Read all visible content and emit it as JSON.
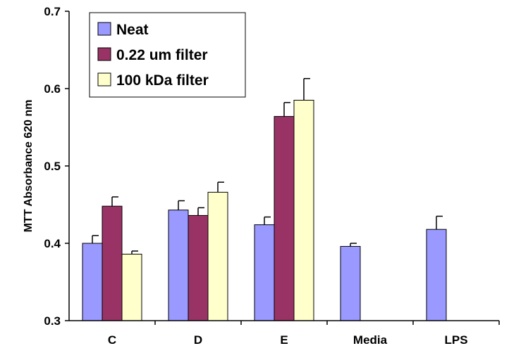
{
  "chart_data": {
    "type": "bar",
    "title": "",
    "xlabel": "",
    "ylabel": "MTT Absorbance 620 nm",
    "ylim": [
      0.3,
      0.7
    ],
    "yticks": [
      "0.3",
      "0.4",
      "0.5",
      "0.6",
      "0.7"
    ],
    "grid": false,
    "legend_position": "top-left",
    "categories": [
      "C",
      "D",
      "E",
      "Media",
      "LPS"
    ],
    "series": [
      {
        "name": "Neat",
        "color": "#9999ff",
        "values": [
          0.4,
          0.443,
          0.424,
          0.396,
          0.418
        ],
        "errors": [
          0.01,
          0.012,
          0.01,
          0.004,
          0.017
        ]
      },
      {
        "name": "0.22 um filter",
        "color": "#993366",
        "values": [
          0.448,
          0.436,
          0.564,
          null,
          null
        ],
        "errors": [
          0.012,
          0.01,
          0.018,
          null,
          null
        ]
      },
      {
        "name": "100 kDa filter",
        "color": "#ffffcc",
        "values": [
          0.386,
          0.466,
          0.585,
          null,
          null
        ],
        "errors": [
          0.004,
          0.013,
          0.028,
          null,
          null
        ]
      }
    ]
  }
}
